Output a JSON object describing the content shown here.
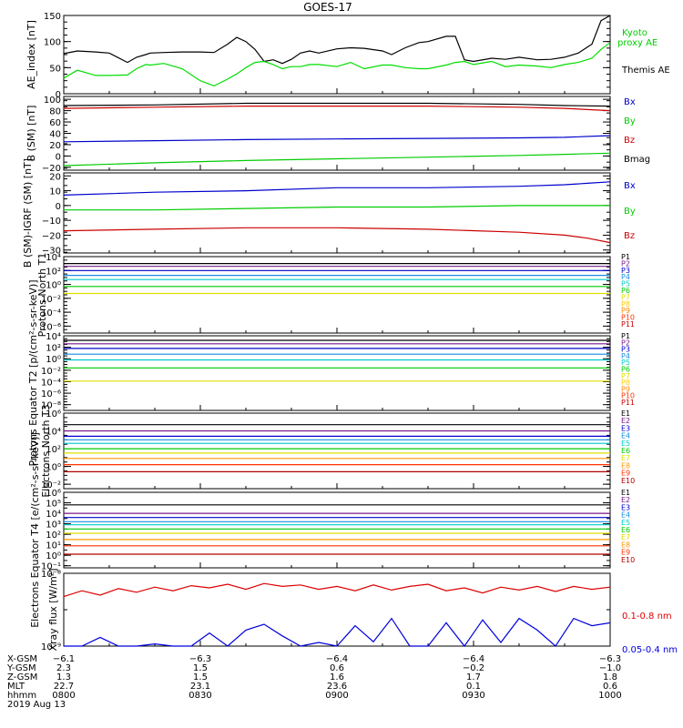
{
  "title": "GOES-17",
  "chart_data": [
    {
      "type": "line",
      "panel": "ae",
      "ylabel": "AE_index [nT]",
      "ylim": [
        0,
        150
      ],
      "y_ticks": [
        {
          "v": 0,
          "t": "0"
        },
        {
          "v": 50,
          "t": "50"
        },
        {
          "v": 100,
          "t": "100"
        },
        {
          "v": 150,
          "t": "150"
        }
      ],
      "x": [
        0,
        3,
        7,
        10,
        14,
        16,
        18,
        19,
        22,
        26,
        30,
        33,
        36,
        38,
        40,
        42,
        44,
        46,
        48,
        50,
        52,
        54,
        56,
        60,
        63,
        66,
        70,
        72,
        75,
        78,
        80,
        84,
        86,
        88,
        90,
        94,
        97,
        100,
        104,
        107,
        110,
        113,
        116,
        118,
        120
      ],
      "series": [
        {
          "name": "Themis AE",
          "color": "#000000",
          "values": [
            77,
            82,
            80,
            78,
            60,
            70,
            75,
            78,
            79,
            80,
            80,
            79,
            95,
            108,
            100,
            85,
            62,
            65,
            58,
            66,
            78,
            82,
            78,
            86,
            88,
            87,
            82,
            75,
            88,
            98,
            100,
            110,
            110,
            65,
            62,
            68,
            66,
            70,
            65,
            66,
            70,
            78,
            95,
            140,
            150
          ]
        },
        {
          "name": "Kyoto proxy AE",
          "color": "#00dd00",
          "values": [
            30,
            45,
            35,
            35,
            36,
            48,
            56,
            55,
            58,
            48,
            25,
            15,
            28,
            38,
            50,
            60,
            62,
            56,
            48,
            52,
            52,
            56,
            56,
            52,
            60,
            48,
            55,
            55,
            50,
            48,
            48,
            55,
            60,
            62,
            56,
            62,
            52,
            55,
            53,
            50,
            56,
            60,
            68,
            85,
            98
          ]
        }
      ],
      "legend": [
        "Kyoto",
        "proxy AE",
        "Themis AE"
      ]
    },
    {
      "type": "line",
      "panel": "bsm",
      "ylabel": "B (SM) [nT]",
      "ylim": [
        -25,
        105
      ],
      "y_ticks": [
        {
          "v": -20,
          "t": "−20"
        },
        {
          "v": 0,
          "t": "0"
        },
        {
          "v": 20,
          "t": "20"
        },
        {
          "v": 40,
          "t": "40"
        },
        {
          "v": 60,
          "t": "60"
        },
        {
          "v": 80,
          "t": "80"
        },
        {
          "v": 100,
          "t": "100"
        }
      ],
      "x": [
        0,
        20,
        40,
        60,
        80,
        100,
        110,
        120
      ],
      "series": [
        {
          "name": "Bx",
          "color": "#0000cc",
          "values": [
            25,
            27,
            29,
            30,
            31,
            32,
            33,
            36
          ]
        },
        {
          "name": "By",
          "color": "#00cc00",
          "values": [
            -17,
            -12,
            -8,
            -5,
            -2,
            1,
            3,
            5
          ]
        },
        {
          "name": "Bz",
          "color": "#cc0000",
          "values": [
            84,
            86,
            88,
            88,
            88,
            86,
            84,
            80
          ]
        },
        {
          "name": "Bmag",
          "color": "#000000",
          "values": [
            89,
            90,
            93,
            93,
            93,
            91,
            89,
            88
          ]
        }
      ]
    },
    {
      "type": "line",
      "panel": "igrf",
      "ylabel": "B (SM)-IGRF (SM) [nT]",
      "ylim": [
        -32,
        22
      ],
      "y_ticks": [
        {
          "v": -30,
          "t": "−30"
        },
        {
          "v": -20,
          "t": "−20"
        },
        {
          "v": -10,
          "t": "−10"
        },
        {
          "v": 0,
          "t": "0"
        },
        {
          "v": 10,
          "t": "10"
        },
        {
          "v": 20,
          "t": "20"
        }
      ],
      "x": [
        0,
        20,
        40,
        60,
        80,
        100,
        110,
        115,
        120
      ],
      "series": [
        {
          "name": "Bx",
          "color": "#0000cc",
          "values": [
            7,
            9,
            10,
            12,
            12,
            13,
            14,
            15,
            16
          ]
        },
        {
          "name": "By",
          "color": "#00cc00",
          "values": [
            -3,
            -3,
            -2,
            -1,
            -1,
            0,
            0,
            0,
            0
          ]
        },
        {
          "name": "Bz",
          "color": "#cc0000",
          "values": [
            -17,
            -16,
            -15,
            -15,
            -16,
            -18,
            -20,
            -22,
            -25
          ]
        }
      ]
    },
    {
      "type": "line",
      "panel": "protons_t1",
      "ylabel": "Protons North T1",
      "log_scale": true,
      "ylim": [
        -7,
        4
      ],
      "y_ticks": [
        {
          "v": 4,
          "t": "10⁴"
        },
        {
          "v": 2,
          "t": "10²"
        },
        {
          "v": 0,
          "t": "10⁰"
        },
        {
          "v": -2,
          "t": "10⁻²"
        },
        {
          "v": -4,
          "t": "10⁻⁴"
        },
        {
          "v": -6,
          "t": "10⁻⁶"
        }
      ],
      "x": [
        0,
        120
      ],
      "series": [
        {
          "name": "P1",
          "color": "#000000",
          "values": [
            3.0,
            3.0
          ]
        },
        {
          "name": "P2",
          "color": "#7a1a8a",
          "values": [
            2.6,
            2.6
          ]
        },
        {
          "name": "P3",
          "color": "#0000cc",
          "values": [
            2.0,
            2.0
          ]
        },
        {
          "name": "P4",
          "color": "#1a8ee0",
          "values": [
            1.3,
            1.3
          ]
        },
        {
          "name": "P5",
          "color": "#00cccc",
          "values": [
            0.7,
            0.7
          ]
        },
        {
          "name": "P6",
          "color": "#00cc00",
          "values": [
            -0.3,
            -0.3
          ]
        },
        {
          "name": "P7",
          "color": "#e0e000",
          "values": [
            -1.3,
            -1.3
          ]
        }
      ],
      "legend": [
        "P1",
        "P2",
        "P3",
        "P4",
        "P5",
        "P6",
        "P7",
        "P8",
        "P9",
        "P10",
        "P11"
      ]
    },
    {
      "type": "line",
      "panel": "protons_t2",
      "ylabel": "Protons Equator T2 [p/(cm²-s-sr-keV)]",
      "log_scale": true,
      "ylim": [
        -9,
        4
      ],
      "y_ticks": [
        {
          "v": 4,
          "t": "10⁴"
        },
        {
          "v": 2,
          "t": "10²"
        },
        {
          "v": 0,
          "t": "10⁰"
        },
        {
          "v": -2,
          "t": "10⁻²"
        },
        {
          "v": -4,
          "t": "10⁻⁴"
        },
        {
          "v": -6,
          "t": "10⁻⁶"
        },
        {
          "v": -8,
          "t": "10⁻⁸"
        }
      ],
      "x": [
        0,
        120
      ],
      "series": [
        {
          "name": "P1",
          "color": "#000000",
          "values": [
            3.2,
            3.2
          ]
        },
        {
          "name": "P2",
          "color": "#7a1a8a",
          "values": [
            2.6,
            2.6
          ]
        },
        {
          "name": "P3",
          "color": "#0000cc",
          "values": [
            1.8,
            1.8
          ]
        },
        {
          "name": "P4",
          "color": "#1a8ee0",
          "values": [
            0.8,
            0.8
          ]
        },
        {
          "name": "P5",
          "color": "#00cccc",
          "values": [
            -0.2,
            -0.2
          ]
        },
        {
          "name": "P6",
          "color": "#00cc00",
          "values": [
            -1.6,
            -1.6
          ]
        },
        {
          "name": "P7",
          "color": "#e0e000",
          "values": [
            -3.9,
            -3.9
          ]
        }
      ],
      "legend": [
        "P1",
        "P2",
        "P3",
        "P4",
        "P5",
        "P6",
        "P7",
        "P8",
        "P9",
        "P10",
        "P11"
      ]
    },
    {
      "type": "line",
      "panel": "electrons_t3",
      "ylabel": "Electrons North T3",
      "log_scale": true,
      "ylim": [
        -2.5,
        6
      ],
      "y_ticks": [
        {
          "v": 6,
          "t": "10⁶"
        },
        {
          "v": 4,
          "t": "10⁴"
        },
        {
          "v": 2,
          "t": "10²"
        },
        {
          "v": 0,
          "t": "10⁰"
        },
        {
          "v": -2,
          "t": "10⁻²"
        }
      ],
      "x": [
        0,
        120
      ],
      "series": [
        {
          "name": "E1",
          "color": "#000000",
          "values": [
            4.7,
            4.7
          ]
        },
        {
          "name": "E2",
          "color": "#7a1a8a",
          "values": [
            4.0,
            4.0
          ]
        },
        {
          "name": "E3",
          "color": "#0000cc",
          "values": [
            3.4,
            3.4
          ]
        },
        {
          "name": "E4",
          "color": "#1a8ee0",
          "values": [
            3.0,
            3.0
          ]
        },
        {
          "name": "E5",
          "color": "#00cccc",
          "values": [
            2.6,
            2.6
          ]
        },
        {
          "name": "E6",
          "color": "#00cc00",
          "values": [
            2.0,
            2.0
          ]
        },
        {
          "name": "E7",
          "color": "#e0e000",
          "values": [
            1.5,
            1.5
          ]
        },
        {
          "name": "E8",
          "color": "#ff9900",
          "values": [
            0.9,
            0.9
          ]
        },
        {
          "name": "E9",
          "color": "#ff3300",
          "values": [
            0.2,
            0.2
          ]
        },
        {
          "name": "E10",
          "color": "#b00000",
          "values": [
            -0.6,
            -0.6
          ]
        }
      ],
      "legend": [
        "E1",
        "E2",
        "E3",
        "E4",
        "E5",
        "E6",
        "E7",
        "E8",
        "E9",
        "E10"
      ]
    },
    {
      "type": "line",
      "panel": "electrons_t4",
      "ylabel": "Electrons Equator T4 [e/(cm²-s-sr-keV)]",
      "log_scale": true,
      "ylim": [
        -1.2,
        6
      ],
      "y_ticks": [
        {
          "v": 6,
          "t": "10⁶"
        },
        {
          "v": 5,
          "t": "10⁵"
        },
        {
          "v": 4,
          "t": "10⁴"
        },
        {
          "v": 3,
          "t": "10³"
        },
        {
          "v": 2,
          "t": "10²"
        },
        {
          "v": 1,
          "t": "10¹"
        },
        {
          "v": 0,
          "t": "10⁰"
        },
        {
          "v": -1,
          "t": "10⁻¹"
        }
      ],
      "x": [
        0,
        120
      ],
      "series": [
        {
          "name": "E1",
          "color": "#000000",
          "values": [
            4.8,
            4.8
          ]
        },
        {
          "name": "E2",
          "color": "#7a1a8a",
          "values": [
            4.0,
            4.0
          ]
        },
        {
          "name": "E3",
          "color": "#0000cc",
          "values": [
            3.6,
            3.6
          ]
        },
        {
          "name": "E4",
          "color": "#1a8ee0",
          "values": [
            3.2,
            3.2
          ]
        },
        {
          "name": "E5",
          "color": "#00cccc",
          "values": [
            2.9,
            2.9
          ]
        },
        {
          "name": "E6",
          "color": "#00cc00",
          "values": [
            2.5,
            2.5
          ]
        },
        {
          "name": "E7",
          "color": "#e0e000",
          "values": [
            2.1,
            2.1
          ]
        },
        {
          "name": "E8",
          "color": "#ff9900",
          "values": [
            1.5,
            1.5
          ]
        },
        {
          "name": "E9",
          "color": "#ff3300",
          "values": [
            0.9,
            0.9
          ]
        },
        {
          "name": "E10",
          "color": "#b00000",
          "values": [
            0.1,
            0.1
          ]
        }
      ],
      "legend": [
        "E1",
        "E2",
        "E3",
        "E4",
        "E5",
        "E6",
        "E7",
        "E8",
        "E9",
        "E10"
      ]
    },
    {
      "type": "line",
      "panel": "xray",
      "ylabel": "Xray flux [W/m²]",
      "log_scale": true,
      "ylim": [
        -9,
        -8
      ],
      "y_ticks": [
        {
          "v": -8,
          "t": "10⁻⁸"
        },
        {
          "v": -9,
          "t": "10⁻⁹"
        }
      ],
      "x": [
        0,
        4,
        8,
        12,
        16,
        20,
        24,
        28,
        32,
        36,
        40,
        44,
        48,
        52,
        56,
        60,
        64,
        68,
        72,
        76,
        80,
        84,
        88,
        92,
        96,
        100,
        104,
        108,
        112,
        116,
        120
      ],
      "series": [
        {
          "name": "0.1-0.8 nm",
          "color": "#dd0000",
          "values": [
            -8.32,
            -8.24,
            -8.3,
            -8.21,
            -8.26,
            -8.19,
            -8.24,
            -8.17,
            -8.2,
            -8.15,
            -8.22,
            -8.14,
            -8.18,
            -8.16,
            -8.22,
            -8.18,
            -8.24,
            -8.16,
            -8.23,
            -8.18,
            -8.15,
            -8.24,
            -8.2,
            -8.27,
            -8.19,
            -8.23,
            -8.18,
            -8.25,
            -8.18,
            -8.22,
            -8.19
          ]
        },
        {
          "name": "0.05-0.4 nm",
          "color": "#0000dd",
          "values": [
            -9,
            -9,
            -8.88,
            -9,
            -9,
            -8.97,
            -9,
            -9,
            -8.82,
            -9,
            -8.78,
            -8.7,
            -8.86,
            -9,
            -8.95,
            -9,
            -8.72,
            -8.94,
            -8.62,
            -9,
            -9,
            -8.68,
            -9,
            -8.64,
            -8.95,
            -8.62,
            -8.78,
            -9,
            -8.62,
            -8.72,
            -8.68
          ]
        }
      ]
    }
  ],
  "x_axis": {
    "tick_labels": [
      "0800",
      "0830",
      "0900",
      "0930",
      "1000"
    ],
    "rows": [
      {
        "label": "X-GSM",
        "values": [
          "−6.1",
          "−6.3",
          "−6.4",
          "−6.4",
          "−6.3"
        ]
      },
      {
        "label": "Y-GSM",
        "values": [
          "2.3",
          "1.5",
          "0.6",
          "−0.2",
          "−1.0"
        ]
      },
      {
        "label": "Z-GSM",
        "values": [
          "1.3",
          "1.5",
          "1.6",
          "1.7",
          "1.8"
        ]
      },
      {
        "label": "MLT",
        "values": [
          "22.7",
          "23.1",
          "23.6",
          "0.1",
          "0.6"
        ]
      },
      {
        "label": "hhmm",
        "values": [
          "0800",
          "0830",
          "0900",
          "0930",
          "1000"
        ]
      }
    ],
    "date": "2019 Aug 13"
  }
}
